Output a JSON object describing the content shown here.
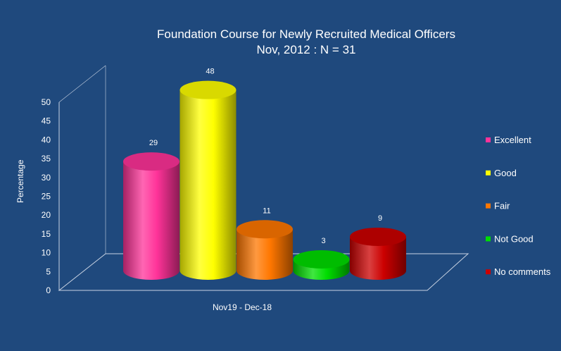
{
  "chart_data": {
    "type": "bar",
    "title": "Foundation Course for Newly Recruited Medical Officers",
    "subtitle": "Nov, 2012 : N = 31",
    "ylabel": "Percentage",
    "xlabel": "",
    "categories": [
      "Nov19 - Dec-18"
    ],
    "series": [
      {
        "name": "Excellent",
        "values": [
          29
        ],
        "color": "#ff3399"
      },
      {
        "name": "Good",
        "values": [
          48
        ],
        "color": "#ffff00"
      },
      {
        "name": "Fair",
        "values": [
          11
        ],
        "color": "#ff7700"
      },
      {
        "name": "Not Good",
        "values": [
          3
        ],
        "color": "#00dd00"
      },
      {
        "name": "No comments",
        "values": [
          9
        ],
        "color": "#cc0000"
      }
    ],
    "ylim": [
      0,
      50
    ],
    "yticks": [
      0,
      5,
      10,
      15,
      20,
      25,
      30,
      35,
      40,
      45,
      50
    ],
    "grid": false,
    "legend": "right",
    "style": "3d-cylinder"
  },
  "colors": {
    "background": "#1f497d",
    "text": "#ffffff"
  }
}
